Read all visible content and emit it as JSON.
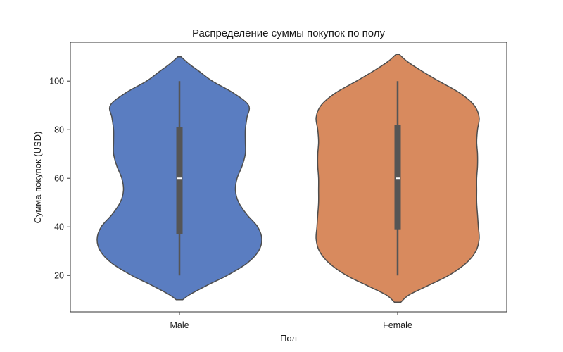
{
  "chart_data": {
    "type": "violin",
    "title": "Распределение суммы покупок по полу",
    "xlabel": "Пол",
    "ylabel": "Сумма покупок (USD)",
    "ylim": [
      5,
      116
    ],
    "yticks": [
      20,
      40,
      60,
      80,
      100
    ],
    "grid": false,
    "categories": [
      "Male",
      "Female"
    ],
    "series": [
      {
        "name": "Male",
        "color": "#5a7dc1",
        "min": 20,
        "q1": 37,
        "median": 60,
        "q3": 81,
        "max": 100,
        "kde_range": [
          10,
          110
        ],
        "density": [
          [
            10,
            0.04
          ],
          [
            12,
            0.12
          ],
          [
            16,
            0.34
          ],
          [
            20,
            0.58
          ],
          [
            25,
            0.82
          ],
          [
            30,
            0.96
          ],
          [
            35,
            1.0
          ],
          [
            40,
            0.95
          ],
          [
            45,
            0.82
          ],
          [
            50,
            0.72
          ],
          [
            55,
            0.68
          ],
          [
            60,
            0.7
          ],
          [
            65,
            0.76
          ],
          [
            70,
            0.8
          ],
          [
            75,
            0.8
          ],
          [
            80,
            0.8
          ],
          [
            85,
            0.82
          ],
          [
            90,
            0.84
          ],
          [
            95,
            0.66
          ],
          [
            100,
            0.4
          ],
          [
            104,
            0.24
          ],
          [
            107,
            0.12
          ],
          [
            110,
            0.02
          ]
        ]
      },
      {
        "name": "Female",
        "color": "#d88a5e",
        "min": 20,
        "q1": 39,
        "median": 60,
        "q3": 82,
        "max": 100,
        "kde_range": [
          9,
          111
        ],
        "density": [
          [
            9,
            0.04
          ],
          [
            12,
            0.14
          ],
          [
            16,
            0.38
          ],
          [
            20,
            0.62
          ],
          [
            25,
            0.83
          ],
          [
            30,
            0.95
          ],
          [
            35,
            0.99
          ],
          [
            40,
            0.98
          ],
          [
            45,
            0.97
          ],
          [
            50,
            0.96
          ],
          [
            55,
            0.96
          ],
          [
            60,
            0.96
          ],
          [
            65,
            0.97
          ],
          [
            70,
            0.97
          ],
          [
            75,
            0.96
          ],
          [
            80,
            0.97
          ],
          [
            85,
            0.99
          ],
          [
            90,
            0.93
          ],
          [
            95,
            0.76
          ],
          [
            100,
            0.5
          ],
          [
            104,
            0.3
          ],
          [
            108,
            0.12
          ],
          [
            111,
            0.02
          ]
        ]
      }
    ]
  }
}
